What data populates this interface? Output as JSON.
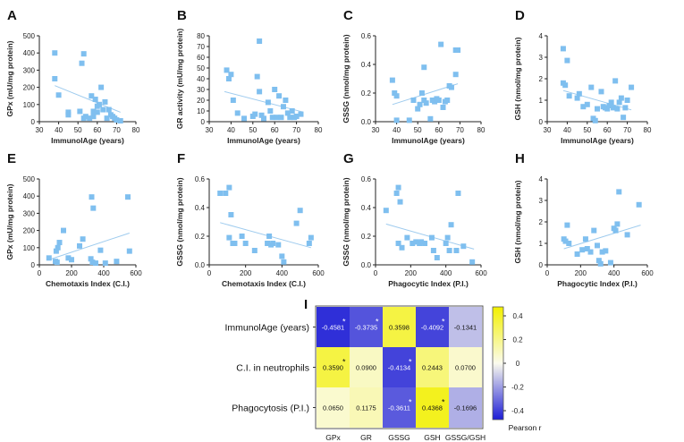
{
  "chart_data": [
    {
      "panel": "A",
      "type": "scatter",
      "xlabel": "ImmunolAge (years)",
      "ylabel": "GPx (mU/mg protein)",
      "xlim": [
        30,
        80
      ],
      "ylim": [
        0,
        500
      ],
      "xticks": [
        "30",
        "40",
        "50",
        "60",
        "70",
        "80"
      ],
      "yticks": [
        "0",
        "100",
        "200",
        "300",
        "400",
        "500"
      ],
      "points": [
        [
          38,
          400
        ],
        [
          38,
          250
        ],
        [
          40,
          155
        ],
        [
          45,
          55
        ],
        [
          45,
          40
        ],
        [
          51,
          60
        ],
        [
          52,
          340
        ],
        [
          53,
          20
        ],
        [
          53,
          395
        ],
        [
          54,
          30
        ],
        [
          56,
          20
        ],
        [
          57,
          150
        ],
        [
          58,
          60
        ],
        [
          58,
          30
        ],
        [
          59,
          130
        ],
        [
          60,
          90
        ],
        [
          60,
          55
        ],
        [
          61,
          100
        ],
        [
          62,
          200
        ],
        [
          63,
          70
        ],
        [
          64,
          115
        ],
        [
          65,
          20
        ],
        [
          66,
          70
        ],
        [
          67,
          40
        ],
        [
          68,
          30
        ],
        [
          69,
          20
        ],
        [
          70,
          10
        ],
        [
          72,
          5
        ]
      ],
      "fit": [
        [
          38,
          210
        ],
        [
          72,
          55
        ]
      ]
    },
    {
      "panel": "B",
      "type": "scatter",
      "xlabel": "ImmunolAge (years)",
      "ylabel": "GR activity (mU/mg protein)",
      "xlim": [
        30,
        80
      ],
      "ylim": [
        0,
        80
      ],
      "xticks": [
        "30",
        "40",
        "50",
        "60",
        "70",
        "80"
      ],
      "yticks": [
        "0",
        "10",
        "20",
        "30",
        "40",
        "50",
        "60",
        "70",
        "80"
      ],
      "points": [
        [
          38,
          48
        ],
        [
          39,
          40
        ],
        [
          40,
          44
        ],
        [
          41,
          20
        ],
        [
          43,
          8
        ],
        [
          46,
          3
        ],
        [
          50,
          5
        ],
        [
          51,
          7
        ],
        [
          52,
          42
        ],
        [
          53,
          28
        ],
        [
          53,
          75
        ],
        [
          54,
          6
        ],
        [
          55,
          3
        ],
        [
          57,
          18
        ],
        [
          58,
          10
        ],
        [
          59,
          4
        ],
        [
          60,
          30
        ],
        [
          61,
          4
        ],
        [
          62,
          24
        ],
        [
          63,
          4
        ],
        [
          64,
          14
        ],
        [
          65,
          20
        ],
        [
          66,
          8
        ],
        [
          67,
          4
        ],
        [
          68,
          10
        ],
        [
          69,
          4
        ],
        [
          70,
          5
        ],
        [
          72,
          7
        ]
      ],
      "fit": [
        [
          37,
          28
        ],
        [
          73,
          9
        ]
      ]
    },
    {
      "panel": "C",
      "type": "scatter",
      "xlabel": "ImmunolAge (years)",
      "ylabel": "GSSG (nmol/mg protein)",
      "xlim": [
        30,
        80
      ],
      "ylim": [
        0,
        0.6
      ],
      "xticks": [
        "30",
        "40",
        "50",
        "60",
        "70",
        "80"
      ],
      "yticks": [
        "0.0",
        "0.2",
        "0.4",
        "0.6"
      ],
      "points": [
        [
          38,
          0.29
        ],
        [
          39,
          0.2
        ],
        [
          40,
          0.18
        ],
        [
          40,
          0.01
        ],
        [
          46,
          0.01
        ],
        [
          48,
          0.15
        ],
        [
          50,
          0.09
        ],
        [
          51,
          0.12
        ],
        [
          52,
          0.2
        ],
        [
          53,
          0.15
        ],
        [
          53,
          0.38
        ],
        [
          54,
          0.13
        ],
        [
          56,
          0.02
        ],
        [
          57,
          0.15
        ],
        [
          58,
          0.14
        ],
        [
          59,
          0.16
        ],
        [
          60,
          0.15
        ],
        [
          61,
          0.54
        ],
        [
          62,
          0.1
        ],
        [
          63,
          0.14
        ],
        [
          64,
          0.15
        ],
        [
          65,
          0.25
        ],
        [
          66,
          0.24
        ],
        [
          68,
          0.5
        ],
        [
          68,
          0.33
        ],
        [
          69,
          0.5
        ]
      ],
      "fit": [
        [
          38,
          0.12
        ],
        [
          69,
          0.265
        ]
      ]
    },
    {
      "panel": "D",
      "type": "scatter",
      "xlabel": "ImmunolAge (years)",
      "ylabel": "GSH (nmol/mg protein)",
      "xlim": [
        30,
        80
      ],
      "ylim": [
        0,
        4
      ],
      "xticks": [
        "30",
        "40",
        "50",
        "60",
        "70",
        "80"
      ],
      "yticks": [
        "0",
        "1",
        "2",
        "3",
        "4"
      ],
      "points": [
        [
          38,
          3.4
        ],
        [
          38,
          1.8
        ],
        [
          39,
          1.7
        ],
        [
          40,
          2.85
        ],
        [
          41,
          1.2
        ],
        [
          45,
          1.1
        ],
        [
          46,
          1.3
        ],
        [
          48,
          0.7
        ],
        [
          50,
          0.8
        ],
        [
          52,
          1.6
        ],
        [
          53,
          0.15
        ],
        [
          54,
          0.05
        ],
        [
          55,
          0.6
        ],
        [
          57,
          1.4
        ],
        [
          58,
          0.7
        ],
        [
          59,
          0.65
        ],
        [
          60,
          0.6
        ],
        [
          61,
          0.75
        ],
        [
          62,
          0.9
        ],
        [
          63,
          0.65
        ],
        [
          64,
          1.9
        ],
        [
          65,
          0.6
        ],
        [
          66,
          0.9
        ],
        [
          67,
          1.1
        ],
        [
          68,
          0.2
        ],
        [
          69,
          0.65
        ],
        [
          70,
          1.0
        ],
        [
          72,
          1.6
        ]
      ],
      "fit": [
        [
          38,
          1.45
        ],
        [
          72,
          0.55
        ]
      ]
    },
    {
      "panel": "E",
      "type": "scatter",
      "xlabel": "Chemotaxis Index (C.I.)",
      "ylabel": "GPx (mU/mg protein)",
      "xlim": [
        0,
        600
      ],
      "ylim": [
        0,
        500
      ],
      "xticks": [
        "0",
        "200",
        "400",
        "600"
      ],
      "yticks": [
        "0",
        "100",
        "200",
        "300",
        "400",
        "500"
      ],
      "points": [
        [
          60,
          40
        ],
        [
          100,
          20
        ],
        [
          105,
          80
        ],
        [
          110,
          15
        ],
        [
          115,
          100
        ],
        [
          125,
          130
        ],
        [
          150,
          200
        ],
        [
          180,
          40
        ],
        [
          200,
          30
        ],
        [
          250,
          110
        ],
        [
          270,
          150
        ],
        [
          320,
          35
        ],
        [
          325,
          395
        ],
        [
          330,
          15
        ],
        [
          335,
          330
        ],
        [
          350,
          10
        ],
        [
          380,
          85
        ],
        [
          410,
          10
        ],
        [
          480,
          20
        ],
        [
          550,
          395
        ],
        [
          560,
          80
        ]
      ],
      "fit": [
        [
          60,
          30
        ],
        [
          560,
          185
        ]
      ]
    },
    {
      "panel": "F",
      "type": "scatter",
      "xlabel": "Chemotaxis Index (C.I.)",
      "ylabel": "GSSG (nmol/mg protein)",
      "xlim": [
        0,
        600
      ],
      "ylim": [
        0,
        0.6
      ],
      "xticks": [
        "0",
        "200",
        "400",
        "600"
      ],
      "yticks": [
        "0.0",
        "0.2",
        "0.4",
        "0.6"
      ],
      "points": [
        [
          60,
          0.5
        ],
        [
          90,
          0.5
        ],
        [
          110,
          0.54
        ],
        [
          120,
          0.35
        ],
        [
          110,
          0.19
        ],
        [
          130,
          0.15
        ],
        [
          140,
          0.15
        ],
        [
          180,
          0.2
        ],
        [
          200,
          0.15
        ],
        [
          250,
          0.1
        ],
        [
          320,
          0.15
        ],
        [
          330,
          0.2
        ],
        [
          340,
          0.14
        ],
        [
          350,
          0.15
        ],
        [
          380,
          0.14
        ],
        [
          400,
          0.06
        ],
        [
          410,
          0.02
        ],
        [
          480,
          0.29
        ],
        [
          500,
          0.38
        ],
        [
          550,
          0.15
        ],
        [
          560,
          0.19
        ]
      ],
      "fit": [
        [
          60,
          0.295
        ],
        [
          560,
          0.12
        ]
      ]
    },
    {
      "panel": "G",
      "type": "scatter",
      "xlabel": "Phagocytic Index (P.I.)",
      "ylabel": "GSSG (nmol/mg protein)",
      "xlim": [
        0,
        600
      ],
      "ylim": [
        0,
        0.6
      ],
      "xticks": [
        "0",
        "200",
        "400",
        "600"
      ],
      "yticks": [
        "0.0",
        "0.2",
        "0.4",
        "0.6"
      ],
      "points": [
        [
          60,
          0.38
        ],
        [
          120,
          0.5
        ],
        [
          130,
          0.54
        ],
        [
          140,
          0.44
        ],
        [
          130,
          0.15
        ],
        [
          150,
          0.12
        ],
        [
          180,
          0.19
        ],
        [
          210,
          0.15
        ],
        [
          230,
          0.16
        ],
        [
          250,
          0.15
        ],
        [
          260,
          0.16
        ],
        [
          280,
          0.15
        ],
        [
          320,
          0.19
        ],
        [
          330,
          0.1
        ],
        [
          350,
          0.05
        ],
        [
          400,
          0.15
        ],
        [
          410,
          0.19
        ],
        [
          420,
          0.1
        ],
        [
          430,
          0.28
        ],
        [
          460,
          0.1
        ],
        [
          470,
          0.5
        ],
        [
          500,
          0.13
        ],
        [
          550,
          0.02
        ]
      ],
      "fit": [
        [
          60,
          0.285
        ],
        [
          560,
          0.11
        ]
      ]
    },
    {
      "panel": "H",
      "type": "scatter",
      "xlabel": "Phagocytic Index (P.I.)",
      "ylabel": "GSH (nmol/mg protein)",
      "xlim": [
        0,
        600
      ],
      "ylim": [
        0,
        4
      ],
      "xticks": [
        "0",
        "200",
        "400",
        "600"
      ],
      "yticks": [
        "0",
        "1",
        "2",
        "3",
        "4"
      ],
      "points": [
        [
          100,
          1.2
        ],
        [
          110,
          1.1
        ],
        [
          120,
          1.85
        ],
        [
          130,
          1.0
        ],
        [
          180,
          0.5
        ],
        [
          210,
          0.7
        ],
        [
          230,
          1.2
        ],
        [
          240,
          0.75
        ],
        [
          260,
          0.6
        ],
        [
          280,
          1.6
        ],
        [
          300,
          0.9
        ],
        [
          310,
          0.2
        ],
        [
          320,
          0.05
        ],
        [
          330,
          0.6
        ],
        [
          350,
          0.65
        ],
        [
          380,
          0.1
        ],
        [
          400,
          1.7
        ],
        [
          410,
          1.6
        ],
        [
          420,
          1.9
        ],
        [
          430,
          3.4
        ],
        [
          480,
          1.4
        ],
        [
          550,
          2.8
        ]
      ],
      "fit": [
        [
          100,
          0.75
        ],
        [
          560,
          1.85
        ]
      ]
    }
  ],
  "heatmap": {
    "panel": "I",
    "rows": [
      "ImmunolAge (years)",
      "C.I. in neutrophils",
      "Phagocytosis (P.I.)"
    ],
    "cols": [
      "GPx",
      "GR",
      "GSSG",
      "GSH",
      "GSSG/GSH"
    ],
    "values": [
      [
        -0.4581,
        -0.3735,
        0.3598,
        -0.4092,
        -0.1341
      ],
      [
        0.359,
        0.09,
        -0.4134,
        0.2443,
        0.07
      ],
      [
        0.065,
        0.1175,
        -0.3611,
        0.4368,
        -0.1696
      ]
    ],
    "labels": [
      [
        "-0.4581",
        "-0.3735",
        "0.3598",
        "-0.4092",
        "-0.1341"
      ],
      [
        "0.3590",
        "0.0900",
        "-0.4134",
        "0.2443",
        "0.0700"
      ],
      [
        "0.0650",
        "0.1175",
        "-0.3611",
        "0.4368",
        "-0.1696"
      ]
    ],
    "stars": [
      [
        true,
        true,
        false,
        true,
        false
      ],
      [
        true,
        false,
        true,
        false,
        false
      ],
      [
        false,
        false,
        true,
        true,
        false
      ]
    ],
    "colorbar_ticks": [
      "0.4",
      "0.2",
      "0",
      "-0.2",
      "-0.4"
    ],
    "colorbar_label": "Pearson r",
    "range": [
      -0.5,
      0.5
    ]
  },
  "colors": {
    "point": "#7fbfef",
    "fit": "#9ecbee",
    "axis": "#222222",
    "neg": "#1c1cd6",
    "mid": "#fbfbee",
    "pos": "#f2f000"
  }
}
